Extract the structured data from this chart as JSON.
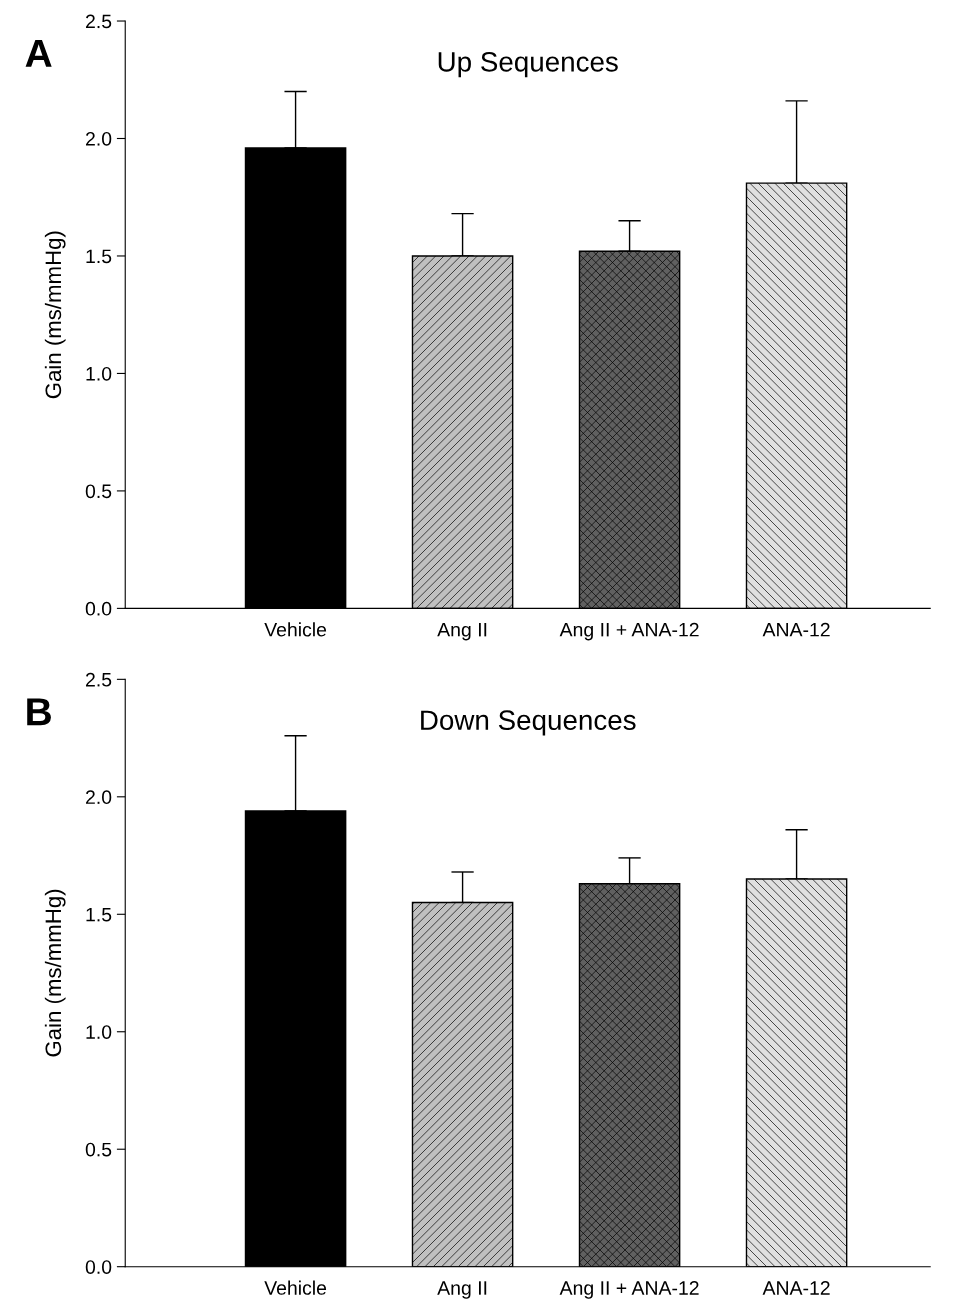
{
  "chart_data": [
    {
      "type": "bar",
      "title": "Up Sequences",
      "ylabel": "Gain (ms/mmHg)",
      "categories": [
        "Vehicle",
        "Ang II",
        "Ang II + ANA-12",
        "ANA-12"
      ],
      "values": [
        1.96,
        1.5,
        1.52,
        1.81
      ],
      "errors": [
        [
          1.96,
          2.2
        ],
        [
          1.5,
          1.68
        ],
        [
          1.52,
          1.65
        ],
        [
          1.81,
          2.16
        ]
      ],
      "colors": [
        "#000000",
        "#c0c0c0",
        "#606060",
        "#e0e0e0"
      ],
      "ylim": [
        0,
        2.5
      ],
      "yticks": [
        {
          "value": 0,
          "label": "0.0"
        },
        {
          "value": 0.5,
          "label": "0.5"
        },
        {
          "value": 1,
          "label": "1.0"
        },
        {
          "value": 1.5,
          "label": "1.5"
        },
        {
          "value": 2,
          "label": "2.0"
        },
        {
          "value": 2.5,
          "label": "2.5"
        }
      ],
      "annotations": [
        "A"
      ],
      "grid": false,
      "legend": false
    },
    {
      "type": "bar",
      "title": "Down Sequences",
      "ylabel": "Gain (ms/mmHg)",
      "categories": [
        "Vehicle",
        "Ang II",
        "Ang II + ANA-12",
        "ANA-12"
      ],
      "values": [
        1.94,
        1.55,
        1.63,
        1.65
      ],
      "errors": [
        [
          1.94,
          2.26
        ],
        [
          1.55,
          1.68
        ],
        [
          1.63,
          1.74
        ],
        [
          1.65,
          1.86
        ]
      ],
      "colors": [
        "#000000",
        "#c0c0c0",
        "#606060",
        "#e0e0e0"
      ],
      "ylim": [
        0,
        2.5
      ],
      "yticks": [
        {
          "value": 0,
          "label": "0.0"
        },
        {
          "value": 0.5,
          "label": "0.5"
        },
        {
          "value": 1,
          "label": "1.0"
        },
        {
          "value": 1.5,
          "label": "1.5"
        },
        {
          "value": 2,
          "label": "2.0"
        },
        {
          "value": 2.5,
          "label": "2.5"
        }
      ],
      "annotations": [
        "B"
      ],
      "grid": false,
      "legend": false
    }
  ]
}
